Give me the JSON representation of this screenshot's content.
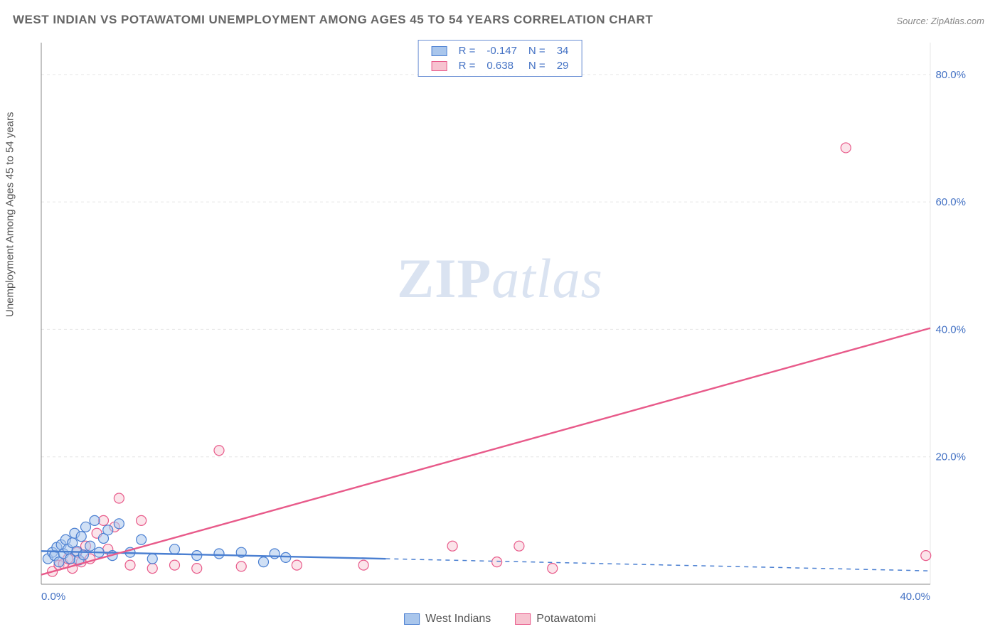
{
  "title": "WEST INDIAN VS POTAWATOMI UNEMPLOYMENT AMONG AGES 45 TO 54 YEARS CORRELATION CHART",
  "source_label": "Source: ",
  "source_name": "ZipAtlas.com",
  "watermark_zip": "ZIP",
  "watermark_atlas": "atlas",
  "ylabel": "Unemployment Among Ages 45 to 54 years",
  "chart": {
    "type": "scatter",
    "xlim": [
      0,
      40
    ],
    "ylim": [
      0,
      85
    ],
    "x_ticks": [
      0,
      40
    ],
    "x_tick_labels": [
      "0.0%",
      "40.0%"
    ],
    "y_ticks": [
      20,
      40,
      60,
      80
    ],
    "y_tick_labels": [
      "20.0%",
      "40.0%",
      "60.0%",
      "80.0%"
    ],
    "axis_color": "#888888",
    "grid_color": "#e6e6e6",
    "tick_label_color": "#4472c4",
    "tick_label_fontsize": 15,
    "background_color": "#ffffff",
    "marker_radius": 7,
    "marker_stroke_width": 1.2,
    "line_width": 2.4,
    "series": [
      {
        "name": "West Indians",
        "fill": "#a9c6ec",
        "stroke": "#4a7fd1",
        "fill_opacity": 0.55,
        "R_label": "R =",
        "R": "-0.147",
        "N_label": "N =",
        "N": "34",
        "trend": {
          "x1": 0,
          "y1": 5.2,
          "x2": 15.5,
          "y2": 4.0,
          "dash_x1": 15.5,
          "dash_y1": 4.0,
          "dash_x2": 40,
          "dash_y2": 2.1
        },
        "points": [
          [
            0.3,
            4.0
          ],
          [
            0.5,
            5.0
          ],
          [
            0.6,
            4.5
          ],
          [
            0.7,
            5.8
          ],
          [
            0.8,
            3.5
          ],
          [
            0.9,
            6.2
          ],
          [
            1.0,
            4.8
          ],
          [
            1.1,
            7.0
          ],
          [
            1.2,
            5.5
          ],
          [
            1.3,
            4.0
          ],
          [
            1.4,
            6.5
          ],
          [
            1.5,
            8.0
          ],
          [
            1.6,
            5.2
          ],
          [
            1.7,
            3.8
          ],
          [
            1.8,
            7.5
          ],
          [
            1.9,
            4.6
          ],
          [
            2.0,
            9.0
          ],
          [
            2.2,
            6.0
          ],
          [
            2.4,
            10.0
          ],
          [
            2.6,
            5.0
          ],
          [
            2.8,
            7.2
          ],
          [
            3.0,
            8.5
          ],
          [
            3.2,
            4.5
          ],
          [
            3.5,
            9.5
          ],
          [
            4.0,
            5.0
          ],
          [
            4.5,
            7.0
          ],
          [
            5.0,
            4.0
          ],
          [
            6.0,
            5.5
          ],
          [
            7.0,
            4.5
          ],
          [
            8.0,
            4.8
          ],
          [
            9.0,
            5.0
          ],
          [
            10.0,
            3.5
          ],
          [
            10.5,
            4.8
          ],
          [
            11.0,
            4.2
          ]
        ]
      },
      {
        "name": "Potawatomi",
        "fill": "#f7c3d0",
        "stroke": "#e85a8a",
        "fill_opacity": 0.45,
        "R_label": "R =",
        "R": "0.638",
        "N_label": "N =",
        "N": "29",
        "trend": {
          "x1": 0,
          "y1": 1.5,
          "x2": 40,
          "y2": 40.2
        },
        "points": [
          [
            0.5,
            2.0
          ],
          [
            0.8,
            3.0
          ],
          [
            1.0,
            3.2
          ],
          [
            1.2,
            4.0
          ],
          [
            1.4,
            2.5
          ],
          [
            1.6,
            5.0
          ],
          [
            1.8,
            3.5
          ],
          [
            2.0,
            6.0
          ],
          [
            2.2,
            4.0
          ],
          [
            2.5,
            8.0
          ],
          [
            2.8,
            10.0
          ],
          [
            3.0,
            5.5
          ],
          [
            3.3,
            9.0
          ],
          [
            3.5,
            13.5
          ],
          [
            4.0,
            3.0
          ],
          [
            4.5,
            10.0
          ],
          [
            5.0,
            2.5
          ],
          [
            6.0,
            3.0
          ],
          [
            7.0,
            2.5
          ],
          [
            8.0,
            21.0
          ],
          [
            9.0,
            2.8
          ],
          [
            11.5,
            3.0
          ],
          [
            14.5,
            3.0
          ],
          [
            18.5,
            6.0
          ],
          [
            20.5,
            3.5
          ],
          [
            21.5,
            6.0
          ],
          [
            23.0,
            2.5
          ],
          [
            36.2,
            68.5
          ],
          [
            39.8,
            4.5
          ]
        ]
      }
    ]
  },
  "legend_bottom": [
    {
      "label": "West Indians",
      "fill": "#a9c6ec",
      "stroke": "#4a7fd1"
    },
    {
      "label": "Potawatomi",
      "fill": "#f7c3d0",
      "stroke": "#e85a8a"
    }
  ]
}
